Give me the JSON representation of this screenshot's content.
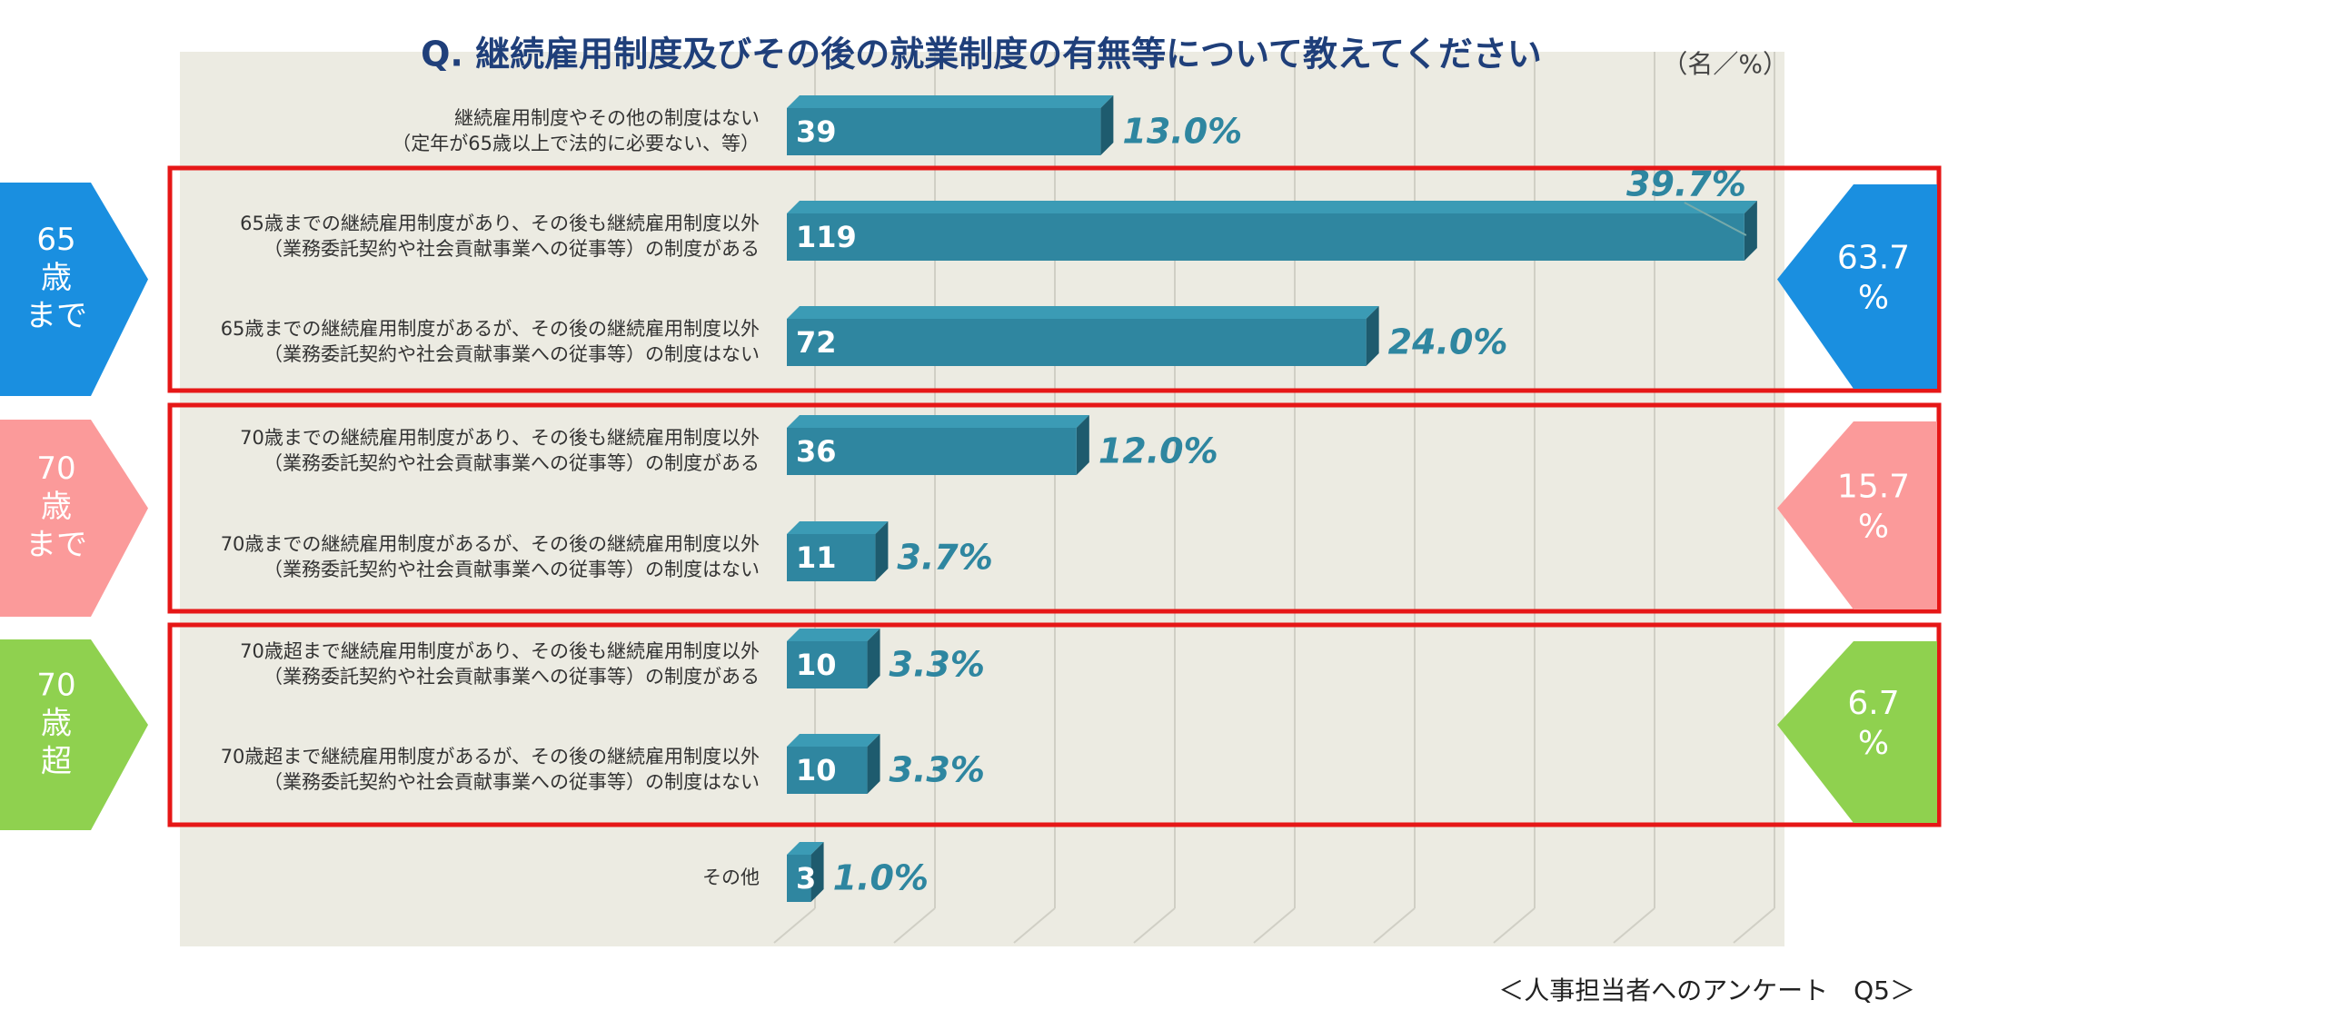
{
  "chart_data": {
    "type": "bar",
    "orientation": "horizontal",
    "title": "Q. 継続雇用制度及びその後の就業制度の有無等について教えてください",
    "unit": "（名／%）",
    "source": "＜人事担当者へのアンケート　Q5＞",
    "categories": [
      [
        "継続雇用制度やその他の制度はない",
        "（定年が65歳以上で法的に必要ない、等）"
      ],
      [
        "65歳までの継続雇用制度があり、その後も継続雇用制度以外",
        "（業務委託契約や社会貢献事業への従事等）の制度がある"
      ],
      [
        "65歳までの継続雇用制度があるが、その後の継続雇用制度以外",
        "（業務委託契約や社会貢献事業への従事等）の制度はない"
      ],
      [
        "70歳までの継続雇用制度があり、その後も継続雇用制度以外",
        "（業務委託契約や社会貢献事業への従事等）の制度がある"
      ],
      [
        "70歳までの継続雇用制度があるが、その後の継続雇用制度以外",
        "（業務委託契約や社会貢献事業への従事等）の制度はない"
      ],
      [
        "70歳超まで継続雇用制度があり、その後も継続雇用制度以外",
        "（業務委託契約や社会貢献事業への従事等）の制度がある"
      ],
      [
        "70歳超まで継続雇用制度があるが、その後の継続雇用制度以外",
        "（業務委託契約や社会貢献事業への従事等）の制度はない"
      ],
      [
        "その他"
      ]
    ],
    "values": [
      39,
      119,
      72,
      36,
      11,
      10,
      10,
      3
    ],
    "percent_labels": [
      "13.0%",
      "39.7%",
      "24.0%",
      "12.0%",
      "3.7%",
      "3.3%",
      "3.3%",
      "1.0%"
    ],
    "color": "#2f86a0",
    "xlim": [
      0,
      125
    ],
    "groups": [
      {
        "label": [
          "65",
          "歳",
          "まで"
        ],
        "total_label": [
          "63.7",
          "%"
        ],
        "color": "#1a8fe0"
      },
      {
        "label": [
          "70",
          "歳",
          "まで"
        ],
        "total_label": [
          "15.7",
          "%"
        ],
        "color": "#fb9a9a"
      },
      {
        "label": [
          "70",
          "歳",
          "超"
        ],
        "total_label": [
          "6.7",
          "%"
        ],
        "color": "#8fd14f"
      }
    ]
  }
}
